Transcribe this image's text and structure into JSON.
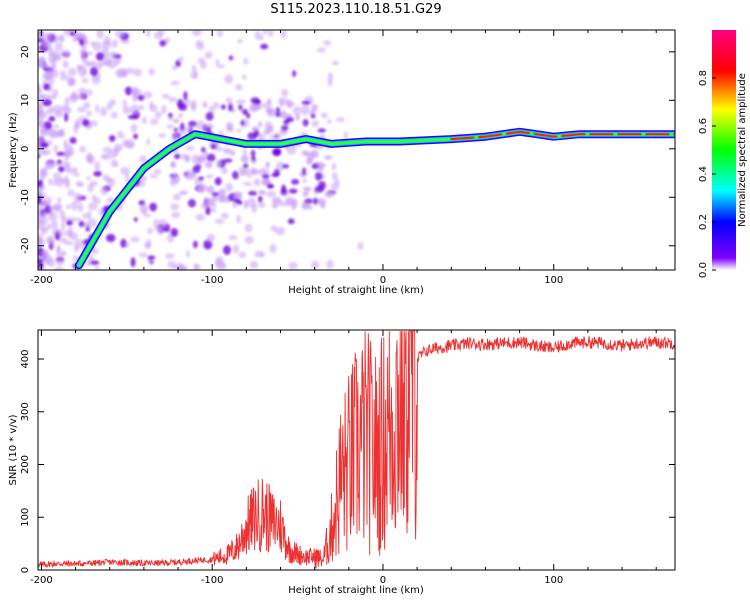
{
  "title": "S115.2023.110.18.51.G29",
  "chart_data": [
    {
      "type": "heatmap",
      "xlabel": "Height of straight line (km)",
      "ylabel": "Frequency (Hz)",
      "xlim": [
        -202,
        171
      ],
      "ylim": [
        -25,
        24.5
      ],
      "x_ticks": [
        -200,
        -100,
        0,
        100
      ],
      "y_ticks": [
        -20,
        -10,
        0,
        10,
        20
      ],
      "colorbar": {
        "label": "Normalized spectral amplitude",
        "range": [
          0,
          1
        ],
        "ticks": [
          0.0,
          0.2,
          0.4,
          0.6,
          0.8
        ]
      },
      "ridge_points": [
        {
          "x": -178,
          "y": -24
        },
        {
          "x": -160,
          "y": -13
        },
        {
          "x": -140,
          "y": -4
        },
        {
          "x": -125,
          "y": 0
        },
        {
          "x": -110,
          "y": 3
        },
        {
          "x": -95,
          "y": 2
        },
        {
          "x": -80,
          "y": 1
        },
        {
          "x": -60,
          "y": 1
        },
        {
          "x": -45,
          "y": 2
        },
        {
          "x": -30,
          "y": 1
        },
        {
          "x": -10,
          "y": 1.5
        },
        {
          "x": 10,
          "y": 1.5
        },
        {
          "x": 40,
          "y": 2
        },
        {
          "x": 60,
          "y": 2.5
        },
        {
          "x": 80,
          "y": 3.5
        },
        {
          "x": 90,
          "y": 3
        },
        {
          "x": 100,
          "y": 2.5
        },
        {
          "x": 115,
          "y": 3
        },
        {
          "x": 140,
          "y": 3
        },
        {
          "x": 171,
          "y": 3
        }
      ],
      "grid": false
    },
    {
      "type": "line",
      "xlabel": "Height of straight line (km)",
      "ylabel": "SNR (10 * v/v)",
      "xlim": [
        -202,
        171
      ],
      "ylim": [
        0,
        455
      ],
      "x_ticks": [
        -200,
        -100,
        0,
        100
      ],
      "y_ticks": [
        0,
        100,
        200,
        300,
        400
      ],
      "color": "#ee3030",
      "series": [
        {
          "x": [
            -202,
            -190,
            -180,
            -170,
            -160,
            -150,
            -140,
            -130,
            -120,
            -110,
            -100,
            -90,
            -85,
            -80,
            -75,
            -70,
            -65,
            -60,
            -55,
            -50,
            -45,
            -40,
            -35,
            -30,
            -25,
            -20,
            -15,
            -10,
            -5,
            0,
            5,
            10,
            15,
            20,
            25,
            30,
            40,
            50,
            60,
            70,
            80,
            90,
            100,
            110,
            120,
            130,
            140,
            150,
            160,
            171
          ],
          "y": [
            10,
            12,
            12,
            13,
            15,
            14,
            13,
            13,
            15,
            18,
            20,
            30,
            45,
            80,
            100,
            110,
            90,
            85,
            40,
            30,
            25,
            25,
            20,
            80,
            170,
            200,
            230,
            250,
            220,
            240,
            280,
            330,
            370,
            400,
            415,
            420,
            425,
            430,
            428,
            430,
            432,
            425,
            420,
            430,
            432,
            430,
            425,
            430,
            432,
            430
          ]
        }
      ],
      "grid": false
    }
  ]
}
